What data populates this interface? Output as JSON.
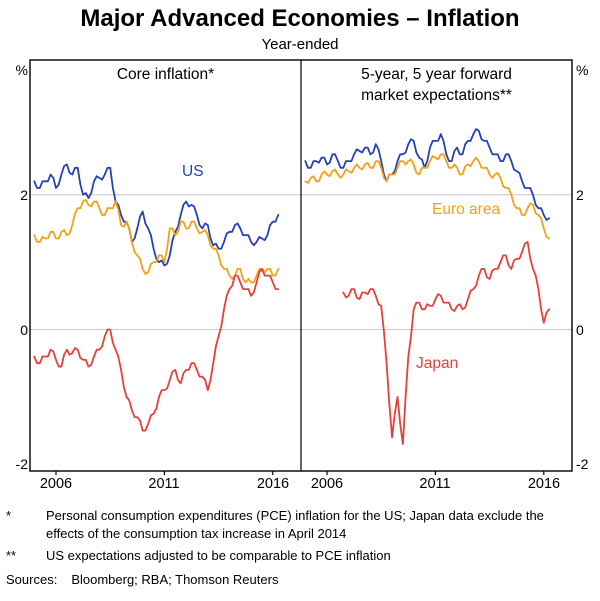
{
  "header": {
    "title": "Major Advanced Economies – Inflation",
    "subtitle": "Year-ended"
  },
  "labels": {
    "panel_left": "Core inflation*",
    "panel_right_line1": "5-year, 5 year forward",
    "panel_right_line2": "market expectations**",
    "us": "US",
    "euro": "Euro area",
    "japan": "Japan"
  },
  "footnotes": [
    {
      "marker": "*",
      "text": "Personal consumption expenditures (PCE) inflation for the US; Japan data exclude the effects of the consumption tax increase in April 2014"
    },
    {
      "marker": "**",
      "text": "US expectations adjusted to be comparable to PCE inflation"
    }
  ],
  "sources": {
    "label": "Sources:",
    "text": "Bloomberg; RBA; Thomson Reuters"
  },
  "chart_data": {
    "type": "line",
    "title": "Major Advanced Economies – Inflation",
    "subtitle": "Year-ended",
    "unit": "%",
    "ylim": [
      -2.1,
      4.0
    ],
    "yticks": [
      2,
      0,
      -2
    ],
    "gridlines": [
      2,
      0
    ],
    "xlim": [
      2004.8,
      2017.3
    ],
    "xticks": [
      "2006",
      "2011",
      "2016"
    ],
    "xtick_years": [
      2006,
      2011,
      2016
    ],
    "colors": {
      "us": "#2541b7",
      "euro": "#f4a118",
      "japan": "#e7403a",
      "grid": "#c9c9c9",
      "axis": "#000000"
    },
    "panels": [
      {
        "label": "Core inflation*",
        "series": [
          {
            "name": "US",
            "color": "#2541b7",
            "x0": 2005.0,
            "dx": 0.25,
            "y": [
              2.2,
              2.1,
              2.2,
              2.3,
              2.1,
              2.3,
              2.45,
              2.3,
              2.4,
              2.0,
              1.95,
              2.2,
              2.25,
              2.3,
              2.4,
              1.9,
              1.7,
              1.6,
              1.3,
              1.5,
              1.75,
              1.5,
              1.2,
              1.0,
              0.95,
              1.1,
              1.45,
              1.7,
              1.9,
              1.85,
              1.7,
              1.5,
              1.55,
              1.25,
              1.2,
              1.3,
              1.45,
              1.55,
              1.5,
              1.4,
              1.3,
              1.3,
              1.35,
              1.4,
              1.6,
              1.7
            ]
          },
          {
            "name": "Euro area",
            "color": "#f4a118",
            "x0": 2005.0,
            "dx": 0.25,
            "y": [
              1.4,
              1.3,
              1.35,
              1.45,
              1.35,
              1.45,
              1.4,
              1.55,
              1.8,
              1.9,
              1.85,
              1.9,
              1.8,
              1.7,
              1.8,
              1.9,
              1.55,
              1.6,
              1.3,
              1.1,
              0.9,
              0.85,
              1.0,
              1.1,
              1.0,
              1.5,
              1.4,
              1.6,
              1.5,
              1.6,
              1.5,
              1.45,
              1.4,
              1.2,
              1.1,
              0.9,
              0.8,
              0.8,
              0.9,
              0.7,
              0.7,
              0.8,
              0.9,
              0.9,
              0.8,
              0.9
            ]
          },
          {
            "name": "Japan",
            "color": "#e7403a",
            "x0": 2005.0,
            "dx": 0.25,
            "y": [
              -0.4,
              -0.5,
              -0.4,
              -0.3,
              -0.45,
              -0.55,
              -0.3,
              -0.35,
              -0.3,
              -0.45,
              -0.55,
              -0.4,
              -0.3,
              -0.1,
              0.0,
              -0.3,
              -0.6,
              -1.0,
              -1.2,
              -1.3,
              -1.5,
              -1.4,
              -1.25,
              -1.0,
              -0.9,
              -0.75,
              -0.6,
              -0.8,
              -0.6,
              -0.5,
              -0.6,
              -0.7,
              -0.9,
              -0.5,
              -0.1,
              0.3,
              0.6,
              0.8,
              0.7,
              0.6,
              0.5,
              0.7,
              0.9,
              0.8,
              0.7,
              0.6
            ]
          }
        ]
      },
      {
        "label": "5-year, 5 year forward market expectations**",
        "series": [
          {
            "name": "US",
            "color": "#2541b7",
            "x0": 2005.0,
            "dx": 0.25,
            "y": [
              2.5,
              2.4,
              2.5,
              2.55,
              2.45,
              2.6,
              2.5,
              2.4,
              2.5,
              2.6,
              2.65,
              2.7,
              2.6,
              2.75,
              2.5,
              2.2,
              2.3,
              2.5,
              2.6,
              2.75,
              2.8,
              2.55,
              2.4,
              2.7,
              2.8,
              2.9,
              2.6,
              2.5,
              2.7,
              2.6,
              2.8,
              2.9,
              2.95,
              2.8,
              2.7,
              2.6,
              2.5,
              2.6,
              2.5,
              2.35,
              2.2,
              2.1,
              2.0,
              1.8,
              1.7,
              1.65
            ]
          },
          {
            "name": "Euro area",
            "color": "#f4a118",
            "x0": 2005.0,
            "dx": 0.25,
            "y": [
              2.2,
              2.25,
              2.2,
              2.3,
              2.3,
              2.35,
              2.3,
              2.3,
              2.35,
              2.4,
              2.4,
              2.45,
              2.4,
              2.5,
              2.4,
              2.2,
              2.3,
              2.4,
              2.5,
              2.5,
              2.45,
              2.3,
              2.4,
              2.5,
              2.55,
              2.6,
              2.5,
              2.4,
              2.4,
              2.3,
              2.45,
              2.5,
              2.5,
              2.4,
              2.3,
              2.3,
              2.25,
              2.1,
              2.0,
              1.8,
              1.7,
              1.8,
              1.85,
              1.7,
              1.5,
              1.35
            ]
          },
          {
            "name": "Japan",
            "color": "#e7403a",
            "x0": 2006.75,
            "dx": 0.25,
            "y": [
              0.55,
              0.5,
              0.6,
              0.45,
              0.55,
              0.6,
              0.5,
              0.35,
              -0.5,
              -1.6,
              -1.0,
              -1.7,
              -0.4,
              0.3,
              0.4,
              0.3,
              0.35,
              0.45,
              0.5,
              0.4,
              0.3,
              0.35,
              0.3,
              0.45,
              0.6,
              0.8,
              0.9,
              0.75,
              0.9,
              1.0,
              1.1,
              0.9,
              1.05,
              1.15,
              1.3,
              0.9,
              0.6,
              0.1,
              0.3
            ]
          }
        ]
      }
    ]
  }
}
